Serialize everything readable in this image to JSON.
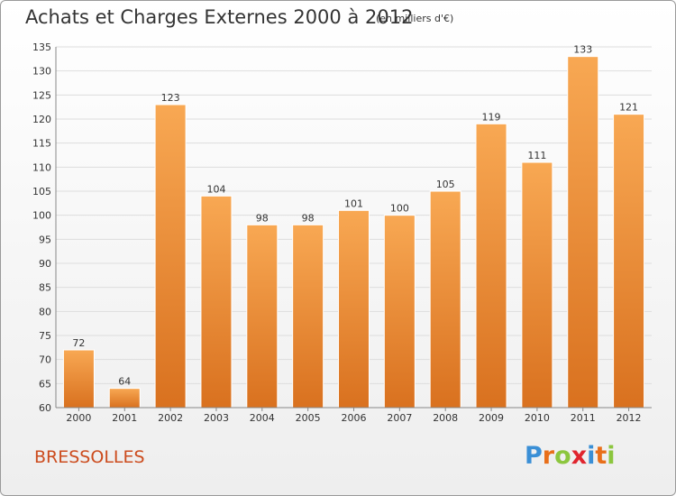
{
  "chart_data": {
    "type": "bar",
    "title": "Achats et Charges Externes 2000 à 2012",
    "subtitle": "(en milliers d'€)",
    "categories": [
      "2000",
      "2001",
      "2002",
      "2003",
      "2004",
      "2005",
      "2006",
      "2007",
      "2008",
      "2009",
      "2010",
      "2011",
      "2012"
    ],
    "values": [
      72,
      64,
      123,
      104,
      98,
      98,
      101,
      100,
      105,
      119,
      111,
      133,
      121
    ],
    "ylim": [
      60,
      135
    ],
    "yticks": [
      60,
      65,
      70,
      75,
      80,
      85,
      90,
      95,
      100,
      105,
      110,
      115,
      120,
      125,
      130,
      135
    ],
    "grid": true,
    "bar_color": "#f0913f"
  },
  "footer": {
    "commune": "BRESSOLLES",
    "logo_letters": [
      "P",
      "r",
      "o",
      "x",
      "i",
      "t",
      "i"
    ],
    "logo_colors": [
      "#3a8fd6",
      "#e86f1a",
      "#8cc63e",
      "#e0252e",
      "#3a8fd6",
      "#e86f1a",
      "#8cc63e"
    ]
  }
}
